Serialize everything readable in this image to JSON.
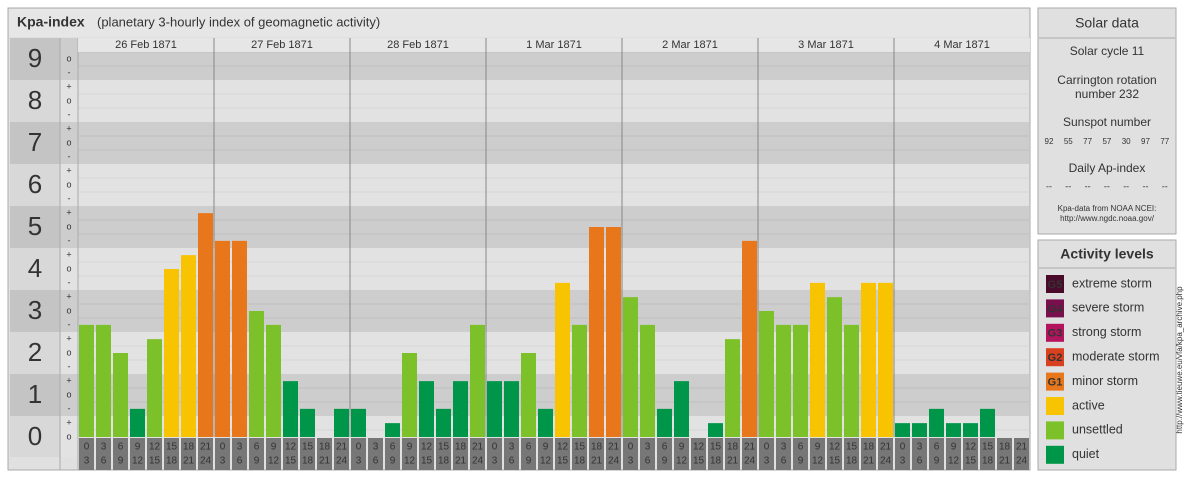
{
  "title": "Kpa-index",
  "subtitle": "(planetary 3-hourly index of geomagnetic activity)",
  "chart_data": {
    "type": "bar",
    "ylim": [
      0,
      9.5
    ],
    "yticks": [
      0,
      1,
      2,
      3,
      4,
      5,
      6,
      7,
      8,
      9
    ],
    "subticks": [
      "-",
      "o",
      "+"
    ],
    "hours": [
      [
        "0",
        "3"
      ],
      [
        "3",
        "6"
      ],
      [
        "6",
        "9"
      ],
      [
        "9",
        "12"
      ],
      [
        "12",
        "15"
      ],
      [
        "15",
        "18"
      ],
      [
        "18",
        "21"
      ],
      [
        "21",
        "24"
      ]
    ],
    "days": [
      {
        "date": "26 Feb 1871",
        "values": [
          2.67,
          2.67,
          2,
          0.67,
          2.33,
          4,
          4.33,
          5.33
        ],
        "colors": [
          "#7cc12a",
          "#7cc12a",
          "#7cc12a",
          "#00964a",
          "#7cc12a",
          "#f8c300",
          "#f8c300",
          "#e8761a"
        ]
      },
      {
        "date": "27 Feb 1871",
        "values": [
          4.67,
          4.67,
          3,
          2.67,
          1.33,
          0.67,
          0,
          0.67
        ],
        "colors": [
          "#e8761a",
          "#e8761a",
          "#7cc12a",
          "#7cc12a",
          "#00964a",
          "#00964a",
          "#00964a",
          "#00964a"
        ]
      },
      {
        "date": "28 Feb 1871",
        "values": [
          0.67,
          0,
          0.33,
          2,
          1.33,
          0.67,
          1.33,
          2.67
        ],
        "colors": [
          "#00964a",
          "#00964a",
          "#00964a",
          "#7cc12a",
          "#00964a",
          "#00964a",
          "#00964a",
          "#7cc12a"
        ]
      },
      {
        "date": "1 Mar 1871",
        "values": [
          1.33,
          1.33,
          2,
          0.67,
          3.67,
          2.67,
          5,
          5
        ],
        "colors": [
          "#00964a",
          "#00964a",
          "#7cc12a",
          "#00964a",
          "#f8c300",
          "#7cc12a",
          "#e8761a",
          "#e8761a"
        ]
      },
      {
        "date": "2 Mar 1871",
        "values": [
          3.33,
          2.67,
          0.67,
          1.33,
          0,
          0.33,
          2.33,
          4.67
        ],
        "colors": [
          "#7cc12a",
          "#7cc12a",
          "#00964a",
          "#00964a",
          "#00964a",
          "#00964a",
          "#7cc12a",
          "#e8761a"
        ]
      },
      {
        "date": "3 Mar 1871",
        "values": [
          3,
          2.67,
          2.67,
          3.67,
          3.33,
          2.67,
          3.67,
          3.67
        ],
        "colors": [
          "#7cc12a",
          "#7cc12a",
          "#7cc12a",
          "#f8c300",
          "#7cc12a",
          "#7cc12a",
          "#f8c300",
          "#f8c300"
        ]
      },
      {
        "date": "4 Mar 1871",
        "values": [
          0.33,
          0.33,
          0.67,
          0.33,
          0.33,
          0.67,
          0,
          0
        ],
        "colors": [
          "#00964a",
          "#00964a",
          "#00964a",
          "#00964a",
          "#00964a",
          "#00964a",
          "#00964a",
          "#00964a"
        ]
      }
    ]
  },
  "solar_data": {
    "title": "Solar data",
    "cycle": "Solar cycle 11",
    "carrington": [
      "Carrington rotation",
      "number 232"
    ],
    "sunspot_label": "Sunspot number",
    "sunspots": [
      92,
      55,
      77,
      57,
      30,
      97,
      77
    ],
    "ap_label": "Daily Ap-index",
    "ap": [
      "--",
      "--",
      "--",
      "--",
      "--",
      "--",
      "--"
    ],
    "source": [
      "Kpa-data from NOAA NCEI:",
      "http://www.ngdc.noaa.gov/"
    ]
  },
  "activity_levels": {
    "title": "Activity levels",
    "items": [
      {
        "badge": "G5",
        "label": "extreme storm",
        "color": "#4a0a2a"
      },
      {
        "badge": "G4",
        "label": "severe storm",
        "color": "#7a0f4e"
      },
      {
        "badge": "G3",
        "label": "strong storm",
        "color": "#b3145e"
      },
      {
        "badge": "G2",
        "label": "moderate storm",
        "color": "#d9401f"
      },
      {
        "badge": "G1",
        "label": "minor storm",
        "color": "#e8761a"
      },
      {
        "label": "active",
        "color": "#f8c300"
      },
      {
        "label": "unsettled",
        "color": "#7cc12a"
      },
      {
        "label": "quiet",
        "color": "#00964a"
      }
    ]
  },
  "watermark": "http://www.tieuwe.eu/vfa/kpa_archive.php"
}
